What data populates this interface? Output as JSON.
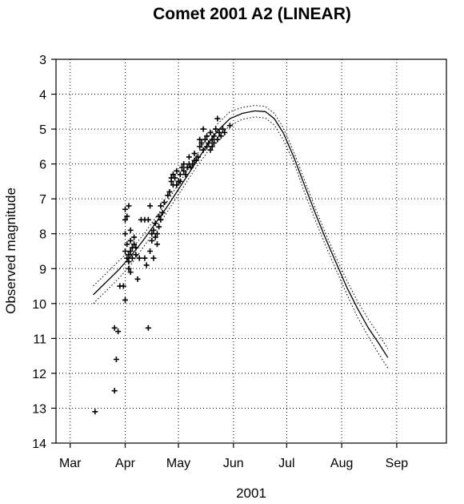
{
  "chart_data": {
    "type": "scatter",
    "title": "Comet 2001 A2 (LINEAR)",
    "xlabel": "2001",
    "ylabel": "Observed magnitude",
    "x_ticks": [
      "Mar",
      "Apr",
      "May",
      "Jun",
      "Jul",
      "Aug",
      "Sep"
    ],
    "x_tick_days": [
      0,
      31,
      61,
      92,
      122,
      153,
      184
    ],
    "x_unit": "days after 2001-03-01",
    "xlim": [
      -8,
      212
    ],
    "ylim": [
      14,
      3
    ],
    "y_inverted": true,
    "y_ticks": [
      3,
      4,
      5,
      6,
      7,
      8,
      9,
      10,
      11,
      12,
      13,
      14
    ],
    "grid": true,
    "series": [
      {
        "kind": "observations",
        "marker": "+",
        "points": [
          [
            14,
            13.1
          ],
          [
            25,
            12.5
          ],
          [
            25,
            10.7
          ],
          [
            26,
            11.6
          ],
          [
            27,
            10.8
          ],
          [
            28,
            9.5
          ],
          [
            30,
            9.5
          ],
          [
            31,
            9.9
          ],
          [
            31,
            7.3
          ],
          [
            31,
            7.6
          ],
          [
            32,
            7.5
          ],
          [
            31,
            8.0
          ],
          [
            32,
            8.3
          ],
          [
            33,
            8.6
          ],
          [
            33,
            8.8
          ],
          [
            34,
            8.2
          ],
          [
            34,
            8.5
          ],
          [
            35,
            8.4
          ],
          [
            35,
            8.7
          ],
          [
            36,
            8.3
          ],
          [
            36,
            8.1
          ],
          [
            37,
            8.6
          ],
          [
            37,
            8.4
          ],
          [
            31,
            8.5
          ],
          [
            32,
            8.7
          ],
          [
            33,
            9.0
          ],
          [
            34,
            9.1
          ],
          [
            33,
            7.2
          ],
          [
            34,
            7.9
          ],
          [
            38,
            9.3
          ],
          [
            39,
            8.7
          ],
          [
            40,
            7.6
          ],
          [
            42,
            7.6
          ],
          [
            42,
            8.7
          ],
          [
            43,
            8.9
          ],
          [
            44,
            7.6
          ],
          [
            45,
            7.2
          ],
          [
            45,
            8.5
          ],
          [
            46,
            8.2
          ],
          [
            47,
            8.7
          ],
          [
            44,
            10.7
          ],
          [
            46,
            8.0
          ],
          [
            47,
            7.9
          ],
          [
            48,
            8.1
          ],
          [
            48,
            7.7
          ],
          [
            49,
            8.0
          ],
          [
            50,
            7.8
          ],
          [
            49,
            8.3
          ],
          [
            50,
            7.5
          ],
          [
            51,
            7.6
          ],
          [
            51,
            7.2
          ],
          [
            52,
            7.4
          ],
          [
            53,
            7.1
          ],
          [
            55,
            6.9
          ],
          [
            56,
            6.8
          ],
          [
            57,
            6.5
          ],
          [
            57,
            6.4
          ],
          [
            58,
            6.6
          ],
          [
            58,
            6.3
          ],
          [
            59,
            6.4
          ],
          [
            60,
            6.6
          ],
          [
            60,
            6.2
          ],
          [
            61,
            6.5
          ],
          [
            62,
            6.5
          ],
          [
            62,
            6.3
          ],
          [
            63,
            6.1
          ],
          [
            64,
            6.2
          ],
          [
            64,
            6.0
          ],
          [
            65,
            6.3
          ],
          [
            66,
            6.1
          ],
          [
            67,
            6.0
          ],
          [
            67,
            5.8
          ],
          [
            68,
            6.1
          ],
          [
            69,
            6.0
          ],
          [
            70,
            5.9
          ],
          [
            70,
            5.7
          ],
          [
            71,
            5.9
          ],
          [
            72,
            5.8
          ],
          [
            73,
            5.5
          ],
          [
            73,
            5.3
          ],
          [
            74,
            5.4
          ],
          [
            75,
            5.6
          ],
          [
            75,
            5.0
          ],
          [
            76,
            5.3
          ],
          [
            77,
            5.5
          ],
          [
            77,
            5.2
          ],
          [
            78,
            5.4
          ],
          [
            79,
            5.6
          ],
          [
            79,
            5.1
          ],
          [
            80,
            5.3
          ],
          [
            80,
            5.5
          ],
          [
            81,
            5.2
          ],
          [
            81,
            5.4
          ],
          [
            82,
            5.0
          ],
          [
            83,
            5.3
          ],
          [
            83,
            4.7
          ],
          [
            84,
            5.1
          ],
          [
            85,
            5.2
          ],
          [
            86,
            5.0
          ],
          [
            87,
            5.1
          ],
          [
            90,
            4.9
          ]
        ]
      },
      {
        "kind": "fit",
        "line": "solid",
        "points": [
          [
            13,
            9.75
          ],
          [
            20,
            9.4
          ],
          [
            27,
            9.05
          ],
          [
            34,
            8.65
          ],
          [
            41,
            8.2
          ],
          [
            48,
            7.7
          ],
          [
            55,
            7.2
          ],
          [
            62,
            6.65
          ],
          [
            69,
            6.1
          ],
          [
            76,
            5.55
          ],
          [
            83,
            5.05
          ],
          [
            90,
            4.7
          ],
          [
            97,
            4.55
          ],
          [
            104,
            4.48
          ],
          [
            110,
            4.5
          ],
          [
            115,
            4.7
          ],
          [
            120,
            5.1
          ],
          [
            126,
            5.8
          ],
          [
            132,
            6.6
          ],
          [
            138,
            7.4
          ],
          [
            144,
            8.15
          ],
          [
            150,
            8.85
          ],
          [
            156,
            9.55
          ],
          [
            162,
            10.15
          ],
          [
            168,
            10.7
          ],
          [
            174,
            11.15
          ],
          [
            179,
            11.55
          ]
        ]
      },
      {
        "kind": "fit_bound",
        "line": "dotted",
        "points": [
          [
            13,
            9.5
          ],
          [
            20,
            9.15
          ],
          [
            27,
            8.8
          ],
          [
            34,
            8.45
          ],
          [
            41,
            8.05
          ],
          [
            48,
            7.55
          ],
          [
            55,
            7.05
          ],
          [
            62,
            6.5
          ],
          [
            69,
            5.95
          ],
          [
            76,
            5.35
          ],
          [
            83,
            4.85
          ],
          [
            90,
            4.5
          ],
          [
            97,
            4.38
          ],
          [
            104,
            4.32
          ],
          [
            110,
            4.35
          ],
          [
            115,
            4.55
          ],
          [
            120,
            4.95
          ],
          [
            126,
            5.65
          ],
          [
            132,
            6.45
          ],
          [
            138,
            7.25
          ],
          [
            144,
            8.0
          ],
          [
            150,
            8.7
          ],
          [
            156,
            9.35
          ],
          [
            162,
            9.95
          ],
          [
            168,
            10.45
          ],
          [
            174,
            10.9
          ],
          [
            179,
            11.3
          ]
        ]
      },
      {
        "kind": "fit_bound",
        "line": "dotted",
        "points": [
          [
            13,
            10.0
          ],
          [
            20,
            9.65
          ],
          [
            27,
            9.3
          ],
          [
            34,
            8.9
          ],
          [
            41,
            8.4
          ],
          [
            48,
            7.9
          ],
          [
            55,
            7.35
          ],
          [
            62,
            6.8
          ],
          [
            69,
            6.25
          ],
          [
            76,
            5.75
          ],
          [
            83,
            5.25
          ],
          [
            90,
            4.9
          ],
          [
            97,
            4.72
          ],
          [
            104,
            4.65
          ],
          [
            110,
            4.68
          ],
          [
            115,
            4.88
          ],
          [
            120,
            5.3
          ],
          [
            126,
            5.95
          ],
          [
            132,
            6.8
          ],
          [
            138,
            7.6
          ],
          [
            144,
            8.35
          ],
          [
            150,
            9.05
          ],
          [
            156,
            9.75
          ],
          [
            162,
            10.4
          ],
          [
            168,
            10.95
          ],
          [
            174,
            11.45
          ],
          [
            179,
            11.85
          ]
        ]
      }
    ]
  }
}
